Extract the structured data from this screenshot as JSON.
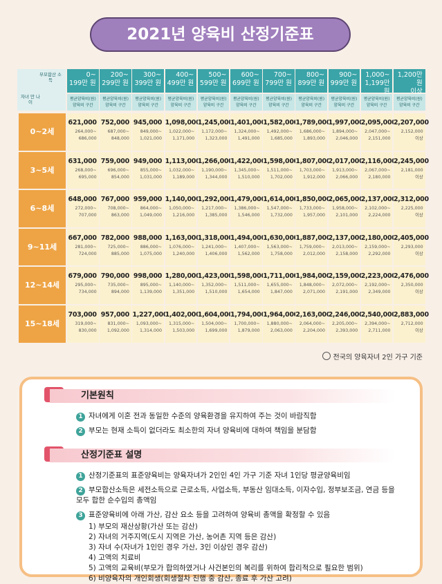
{
  "header": {
    "title": "2021년 양육비 산정기준표"
  },
  "table": {
    "corner": {
      "income": "부모합산 소득",
      "age": "자녀 만 나이"
    },
    "columns": [
      [
        "0~",
        "199만 원"
      ],
      [
        "200~",
        "299만 원"
      ],
      [
        "300~",
        "399만 원"
      ],
      [
        "400~",
        "499만 원"
      ],
      [
        "500~",
        "599만 원"
      ],
      [
        "600~",
        "699만 원"
      ],
      [
        "700~",
        "799만 원"
      ],
      [
        "800~",
        "899만 원"
      ],
      [
        "900~",
        "999만 원"
      ],
      [
        "1,000~",
        "1,199만 원"
      ],
      [
        "1,200만 원",
        "이상"
      ]
    ],
    "subheader": {
      "avg": "평균양육비(원)",
      "range": "양육비 구간"
    },
    "rows": [
      {
        "age": "0~2세",
        "cells": [
          [
            "621,000",
            "264,000~",
            "686,000"
          ],
          [
            "752,000",
            "687,000~",
            "848,000"
          ],
          [
            "945,000",
            "849,000~",
            "1,021,000"
          ],
          [
            "1,098,000",
            "1,022,000~",
            "1,171,000"
          ],
          [
            "1,245,000",
            "1,172,000~",
            "1,323,000"
          ],
          [
            "1,401,000",
            "1,324,000~",
            "1,491,000"
          ],
          [
            "1,582,000",
            "1,492,000~",
            "1,685,000"
          ],
          [
            "1,789,000",
            "1,686,000~",
            "1,893,000"
          ],
          [
            "1,997,000",
            "1,894,000~",
            "2,046,000"
          ],
          [
            "2,095,000",
            "2,047,000~",
            "2,151,000"
          ],
          [
            "2,207,000",
            "2,152,000",
            "이상"
          ]
        ]
      },
      {
        "age": "3~5세",
        "cells": [
          [
            "631,000",
            "268,000~",
            "695,000"
          ],
          [
            "759,000",
            "696,000~",
            "854,000"
          ],
          [
            "949,000",
            "855,000~",
            "1,031,000"
          ],
          [
            "1,113,000",
            "1,032,000~",
            "1,189,000"
          ],
          [
            "1,266,000",
            "1,190,000~",
            "1,344,000"
          ],
          [
            "1,422,000",
            "1,345,000~",
            "1,510,000"
          ],
          [
            "1,598,000",
            "1,511,000~",
            "1,702,000"
          ],
          [
            "1,807,000",
            "1,703,000~",
            "1,912,000"
          ],
          [
            "2,017,000",
            "1,913,000~",
            "2,066,000"
          ],
          [
            "2,116,000",
            "2,067,000~",
            "2,180,000"
          ],
          [
            "2,245,000",
            "2,181,000",
            "이상"
          ]
        ]
      },
      {
        "age": "6~8세",
        "cells": [
          [
            "648,000",
            "272,000~",
            "707,000"
          ],
          [
            "767,000",
            "708,000~",
            "863,000"
          ],
          [
            "959,000",
            "864,000~",
            "1,049,000"
          ],
          [
            "1,140,000",
            "1,050,000~",
            "1,216,000"
          ],
          [
            "1,292,000",
            "1,217,000~",
            "1,385,000"
          ],
          [
            "1,479,000",
            "1,386,000~",
            "1,546,000"
          ],
          [
            "1,614,000",
            "1,547,000~",
            "1,732,000"
          ],
          [
            "1,850,000",
            "1,733,000~",
            "1,957,000"
          ],
          [
            "2,065,000",
            "1,958,000~",
            "2,101,000"
          ],
          [
            "2,137,000",
            "2,102,000~",
            "2,224,000"
          ],
          [
            "2,312,000",
            "2,225,000",
            "이상"
          ]
        ]
      },
      {
        "age": "9~11세",
        "cells": [
          [
            "667,000",
            "281,000~",
            "724,000"
          ],
          [
            "782,000",
            "725,000~",
            "885,000"
          ],
          [
            "988,000",
            "886,000~",
            "1,075,000"
          ],
          [
            "1,163,000",
            "1,076,000~",
            "1,240,000"
          ],
          [
            "1,318,000",
            "1,241,000~",
            "1,406,000"
          ],
          [
            "1,494,000",
            "1,407,000~",
            "1,562,000"
          ],
          [
            "1,630,000",
            "1,563,000~",
            "1,758,000"
          ],
          [
            "1,887,000",
            "1,759,000~",
            "2,012,000"
          ],
          [
            "2,137,000",
            "2,013,000~",
            "2,158,000"
          ],
          [
            "2,180,000",
            "2,159,000~",
            "2,292,000"
          ],
          [
            "2,405,000",
            "2,293,000",
            "이상"
          ]
        ]
      },
      {
        "age": "12~14세",
        "cells": [
          [
            "679,000",
            "295,000~",
            "734,000"
          ],
          [
            "790,000",
            "735,000~",
            "894,000"
          ],
          [
            "998,000",
            "895,000~",
            "1,139,000"
          ],
          [
            "1,280,000",
            "1,140,000~",
            "1,351,000"
          ],
          [
            "1,423,000",
            "1,352,000~",
            "1,510,000"
          ],
          [
            "1,598,000",
            "1,511,000~",
            "1,654,000"
          ],
          [
            "1,711,000",
            "1,655,000~",
            "1,847,000"
          ],
          [
            "1,984,000",
            "1,848,000~",
            "2,071,000"
          ],
          [
            "2,159,000",
            "2,072,000~",
            "2,191,000"
          ],
          [
            "2,223,000",
            "2,192,000~",
            "2,349,000"
          ],
          [
            "2,476,000",
            "2,350,000",
            "이상"
          ]
        ]
      },
      {
        "age": "15~18세",
        "cells": [
          [
            "703,000",
            "319,000~",
            "830,000"
          ],
          [
            "957,000",
            "831,000~",
            "1,092,000"
          ],
          [
            "1,227,000",
            "1,093,000~",
            "1,314,000"
          ],
          [
            "1,402,000",
            "1,315,000~",
            "1,503,000"
          ],
          [
            "1,604,000",
            "1,504,000~",
            "1,699,000"
          ],
          [
            "1,794,000",
            "1,700,000~",
            "1,879,000"
          ],
          [
            "1,964,000",
            "1,880,000~",
            "2,063,000"
          ],
          [
            "2,163,000",
            "2,064,000~",
            "2,204,000"
          ],
          [
            "2,246,000",
            "2,205,000~",
            "2,393,000"
          ],
          [
            "2,540,000",
            "2,394,000~",
            "2,711,000"
          ],
          [
            "2,883,000",
            "2,712,000",
            "이상"
          ]
        ]
      }
    ],
    "note": "전국의 양육자녀 2인 가구 기준"
  },
  "sections": [
    {
      "title": "기본원칙",
      "items": [
        {
          "number": "1",
          "text": "자녀에게 이혼 전과 동일한 수준의 양육환경을 유지하여 주는 것이 바람직함",
          "sub": []
        },
        {
          "number": "2",
          "text": "부모는 현재 소득이 없더라도 최소한의 자녀 양육비에 대하여 책임을 분담함",
          "sub": []
        }
      ]
    },
    {
      "title": "산정기준표 설명",
      "items": [
        {
          "number": "1",
          "text": "산정기준표의 표준양육비는 양육자녀가 2인인 4인 가구 기준 자녀 1인당 평균양육비임",
          "sub": []
        },
        {
          "number": "2",
          "text": "부모합산소득은 세전소득으로 근로소득, 사업소득, 부동산 임대소득, 이자수입, 정부보조금, 연금 등을 모두 합한 순수입의 총액임",
          "sub": []
        },
        {
          "number": "3",
          "text": "표준양육비에 아래 가산, 감산 요소 등을 고려하여 양육비 총액을 확정할 수 있음",
          "sub": [
            "1) 부모의 재산상황(가산 또는 감산)",
            "2) 자녀의 거주지역(도시 지역은 가산, 농어촌 지역 등은 감산)",
            "3) 자녀 수(자녀가 1인인 경우 가산, 3인 이상인 경우 감산)",
            "4) 고액의 치료비",
            "5) 고액의 교육비(부모가 합의하였거나 사건본인의 복리를 위하여 합리적으로 필요한 범위)",
            "6) 비양육자의 개인회생(회생절차 진행 중 감산, 종료 후 가산 고려)"
          ]
        }
      ]
    }
  ]
}
